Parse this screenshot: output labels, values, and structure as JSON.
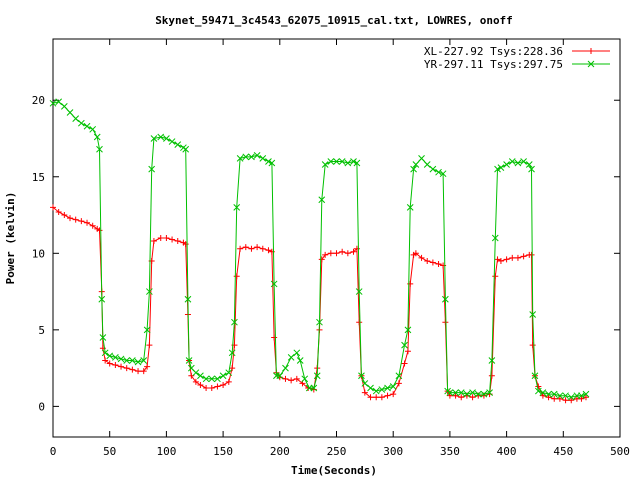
{
  "chart_data": {
    "type": "line",
    "title": "Skynet_59471_3c4543_62075_10915_cal.txt, LOWRES, onoff",
    "xlabel": "Time(Seconds)",
    "ylabel": "Power (kelvin)",
    "xlim": [
      0,
      500
    ],
    "ylim": [
      -2,
      24
    ],
    "xticks": [
      0,
      50,
      100,
      150,
      200,
      250,
      300,
      350,
      400,
      450,
      500
    ],
    "yticks": [
      0,
      5,
      10,
      15,
      20
    ],
    "grid": false,
    "legend_position": "top-right",
    "colors": {
      "XL": "#ff0000",
      "YR": "#00c000"
    },
    "series": [
      {
        "name": "XL-227.92 Tsys:228.36",
        "marker": "plus",
        "points": [
          [
            0,
            13.0
          ],
          [
            5,
            12.7
          ],
          [
            10,
            12.5
          ],
          [
            15,
            12.3
          ],
          [
            20,
            12.2
          ],
          [
            25,
            12.1
          ],
          [
            30,
            12.0
          ],
          [
            35,
            11.8
          ],
          [
            39,
            11.6
          ],
          [
            41,
            11.5
          ],
          [
            43,
            7.5
          ],
          [
            44,
            3.8
          ],
          [
            46,
            3.0
          ],
          [
            50,
            2.8
          ],
          [
            55,
            2.7
          ],
          [
            60,
            2.6
          ],
          [
            65,
            2.5
          ],
          [
            70,
            2.4
          ],
          [
            75,
            2.3
          ],
          [
            80,
            2.3
          ],
          [
            83,
            2.6
          ],
          [
            85,
            4.0
          ],
          [
            87,
            9.5
          ],
          [
            89,
            10.8
          ],
          [
            95,
            11.0
          ],
          [
            100,
            11.0
          ],
          [
            105,
            10.9
          ],
          [
            110,
            10.8
          ],
          [
            115,
            10.7
          ],
          [
            117,
            10.6
          ],
          [
            119,
            6.0
          ],
          [
            120,
            3.0
          ],
          [
            122,
            2.0
          ],
          [
            126,
            1.6
          ],
          [
            130,
            1.4
          ],
          [
            135,
            1.2
          ],
          [
            140,
            1.2
          ],
          [
            145,
            1.3
          ],
          [
            150,
            1.4
          ],
          [
            155,
            1.6
          ],
          [
            158,
            2.5
          ],
          [
            160,
            4.0
          ],
          [
            162,
            8.5
          ],
          [
            165,
            10.3
          ],
          [
            170,
            10.4
          ],
          [
            175,
            10.3
          ],
          [
            180,
            10.4
          ],
          [
            185,
            10.3
          ],
          [
            190,
            10.2
          ],
          [
            193,
            10.1
          ],
          [
            195,
            4.5
          ],
          [
            197,
            2.2
          ],
          [
            200,
            1.9
          ],
          [
            205,
            1.8
          ],
          [
            210,
            1.7
          ],
          [
            215,
            1.8
          ],
          [
            220,
            1.5
          ],
          [
            225,
            1.2
          ],
          [
            230,
            1.1
          ],
          [
            233,
            2.5
          ],
          [
            235,
            5.0
          ],
          [
            237,
            9.6
          ],
          [
            240,
            9.9
          ],
          [
            245,
            10.0
          ],
          [
            250,
            10.0
          ],
          [
            255,
            10.1
          ],
          [
            260,
            10.0
          ],
          [
            265,
            10.1
          ],
          [
            268,
            10.3
          ],
          [
            270,
            5.5
          ],
          [
            272,
            2.0
          ],
          [
            275,
            0.9
          ],
          [
            280,
            0.6
          ],
          [
            285,
            0.6
          ],
          [
            290,
            0.6
          ],
          [
            295,
            0.7
          ],
          [
            300,
            0.8
          ],
          [
            305,
            1.5
          ],
          [
            310,
            2.8
          ],
          [
            313,
            3.6
          ],
          [
            315,
            8.0
          ],
          [
            318,
            9.9
          ],
          [
            320,
            10.0
          ],
          [
            325,
            9.7
          ],
          [
            330,
            9.5
          ],
          [
            335,
            9.4
          ],
          [
            340,
            9.3
          ],
          [
            344,
            9.2
          ],
          [
            346,
            5.5
          ],
          [
            348,
            1.0
          ],
          [
            350,
            0.7
          ],
          [
            355,
            0.7
          ],
          [
            360,
            0.6
          ],
          [
            365,
            0.7
          ],
          [
            370,
            0.6
          ],
          [
            375,
            0.7
          ],
          [
            380,
            0.7
          ],
          [
            385,
            0.8
          ],
          [
            387,
            2.0
          ],
          [
            390,
            8.5
          ],
          [
            392,
            9.6
          ],
          [
            395,
            9.5
          ],
          [
            400,
            9.6
          ],
          [
            405,
            9.7
          ],
          [
            410,
            9.7
          ],
          [
            415,
            9.8
          ],
          [
            420,
            9.9
          ],
          [
            422,
            9.9
          ],
          [
            423,
            4.0
          ],
          [
            425,
            2.0
          ],
          [
            428,
            1.3
          ],
          [
            432,
            0.7
          ],
          [
            437,
            0.6
          ],
          [
            442,
            0.5
          ],
          [
            447,
            0.5
          ],
          [
            452,
            0.4
          ],
          [
            457,
            0.4
          ],
          [
            462,
            0.5
          ],
          [
            466,
            0.5
          ],
          [
            470,
            0.6
          ]
        ]
      },
      {
        "name": "YR-297.11 Tsys:297.75",
        "marker": "x",
        "points": [
          [
            0,
            19.8
          ],
          [
            5,
            19.9
          ],
          [
            10,
            19.6
          ],
          [
            15,
            19.2
          ],
          [
            20,
            18.8
          ],
          [
            25,
            18.5
          ],
          [
            30,
            18.3
          ],
          [
            35,
            18.1
          ],
          [
            39,
            17.6
          ],
          [
            41,
            16.8
          ],
          [
            43,
            7.0
          ],
          [
            44,
            4.5
          ],
          [
            46,
            3.5
          ],
          [
            50,
            3.3
          ],
          [
            55,
            3.2
          ],
          [
            60,
            3.1
          ],
          [
            65,
            3.0
          ],
          [
            70,
            3.0
          ],
          [
            75,
            2.9
          ],
          [
            80,
            3.0
          ],
          [
            83,
            5.0
          ],
          [
            85,
            7.5
          ],
          [
            87,
            15.5
          ],
          [
            89,
            17.5
          ],
          [
            95,
            17.6
          ],
          [
            100,
            17.5
          ],
          [
            105,
            17.3
          ],
          [
            110,
            17.1
          ],
          [
            115,
            16.9
          ],
          [
            117,
            16.8
          ],
          [
            119,
            7.0
          ],
          [
            120,
            3.0
          ],
          [
            122,
            2.5
          ],
          [
            126,
            2.2
          ],
          [
            130,
            2.0
          ],
          [
            135,
            1.8
          ],
          [
            140,
            1.8
          ],
          [
            145,
            1.8
          ],
          [
            150,
            2.0
          ],
          [
            155,
            2.2
          ],
          [
            158,
            3.5
          ],
          [
            160,
            5.5
          ],
          [
            162,
            13.0
          ],
          [
            165,
            16.2
          ],
          [
            170,
            16.3
          ],
          [
            175,
            16.3
          ],
          [
            180,
            16.4
          ],
          [
            185,
            16.2
          ],
          [
            190,
            16.0
          ],
          [
            193,
            15.9
          ],
          [
            195,
            8.0
          ],
          [
            197,
            2.0
          ],
          [
            200,
            2.0
          ],
          [
            205,
            2.5
          ],
          [
            210,
            3.2
          ],
          [
            215,
            3.5
          ],
          [
            218,
            3.0
          ],
          [
            222,
            1.8
          ],
          [
            226,
            1.2
          ],
          [
            230,
            1.2
          ],
          [
            233,
            2.0
          ],
          [
            235,
            5.5
          ],
          [
            237,
            13.5
          ],
          [
            240,
            15.8
          ],
          [
            245,
            16.0
          ],
          [
            250,
            16.0
          ],
          [
            255,
            16.0
          ],
          [
            260,
            15.9
          ],
          [
            265,
            16.0
          ],
          [
            268,
            15.9
          ],
          [
            270,
            7.5
          ],
          [
            272,
            2.0
          ],
          [
            275,
            1.5
          ],
          [
            280,
            1.2
          ],
          [
            285,
            1.0
          ],
          [
            290,
            1.1
          ],
          [
            295,
            1.2
          ],
          [
            300,
            1.3
          ],
          [
            305,
            2.0
          ],
          [
            310,
            4.0
          ],
          [
            313,
            5.0
          ],
          [
            315,
            13.0
          ],
          [
            318,
            15.5
          ],
          [
            320,
            15.8
          ],
          [
            325,
            16.2
          ],
          [
            330,
            15.8
          ],
          [
            335,
            15.5
          ],
          [
            340,
            15.3
          ],
          [
            344,
            15.2
          ],
          [
            346,
            7.0
          ],
          [
            348,
            1.0
          ],
          [
            350,
            0.9
          ],
          [
            355,
            0.9
          ],
          [
            360,
            0.9
          ],
          [
            365,
            0.8
          ],
          [
            370,
            0.9
          ],
          [
            375,
            0.8
          ],
          [
            380,
            0.8
          ],
          [
            385,
            0.9
          ],
          [
            387,
            3.0
          ],
          [
            390,
            11.0
          ],
          [
            392,
            15.5
          ],
          [
            395,
            15.6
          ],
          [
            400,
            15.8
          ],
          [
            405,
            16.0
          ],
          [
            410,
            15.9
          ],
          [
            415,
            16.0
          ],
          [
            420,
            15.8
          ],
          [
            422,
            15.5
          ],
          [
            423,
            6.0
          ],
          [
            425,
            2.0
          ],
          [
            428,
            1.0
          ],
          [
            432,
            0.9
          ],
          [
            437,
            0.8
          ],
          [
            442,
            0.8
          ],
          [
            447,
            0.7
          ],
          [
            452,
            0.7
          ],
          [
            457,
            0.6
          ],
          [
            462,
            0.7
          ],
          [
            466,
            0.7
          ],
          [
            470,
            0.8
          ]
        ]
      }
    ]
  }
}
